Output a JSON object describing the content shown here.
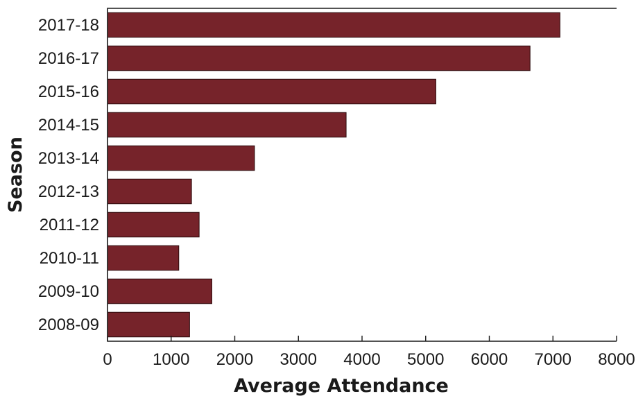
{
  "chart_data": {
    "type": "bar",
    "orientation": "horizontal",
    "categories": [
      "2017-18",
      "2016-17",
      "2015-16",
      "2014-15",
      "2013-14",
      "2012-13",
      "2011-12",
      "2010-11",
      "2009-10",
      "2008-09"
    ],
    "values": [
      7110,
      6640,
      5160,
      3750,
      2310,
      1320,
      1440,
      1120,
      1640,
      1290
    ],
    "xlabel": "Average Attendance",
    "ylabel": "Season",
    "xlim": [
      0,
      8000
    ],
    "xticks": [
      "0",
      "1000",
      "2000",
      "3000",
      "4000",
      "5000",
      "6000",
      "7000",
      "8000"
    ],
    "bar_color": "#76232a",
    "grid": false
  }
}
